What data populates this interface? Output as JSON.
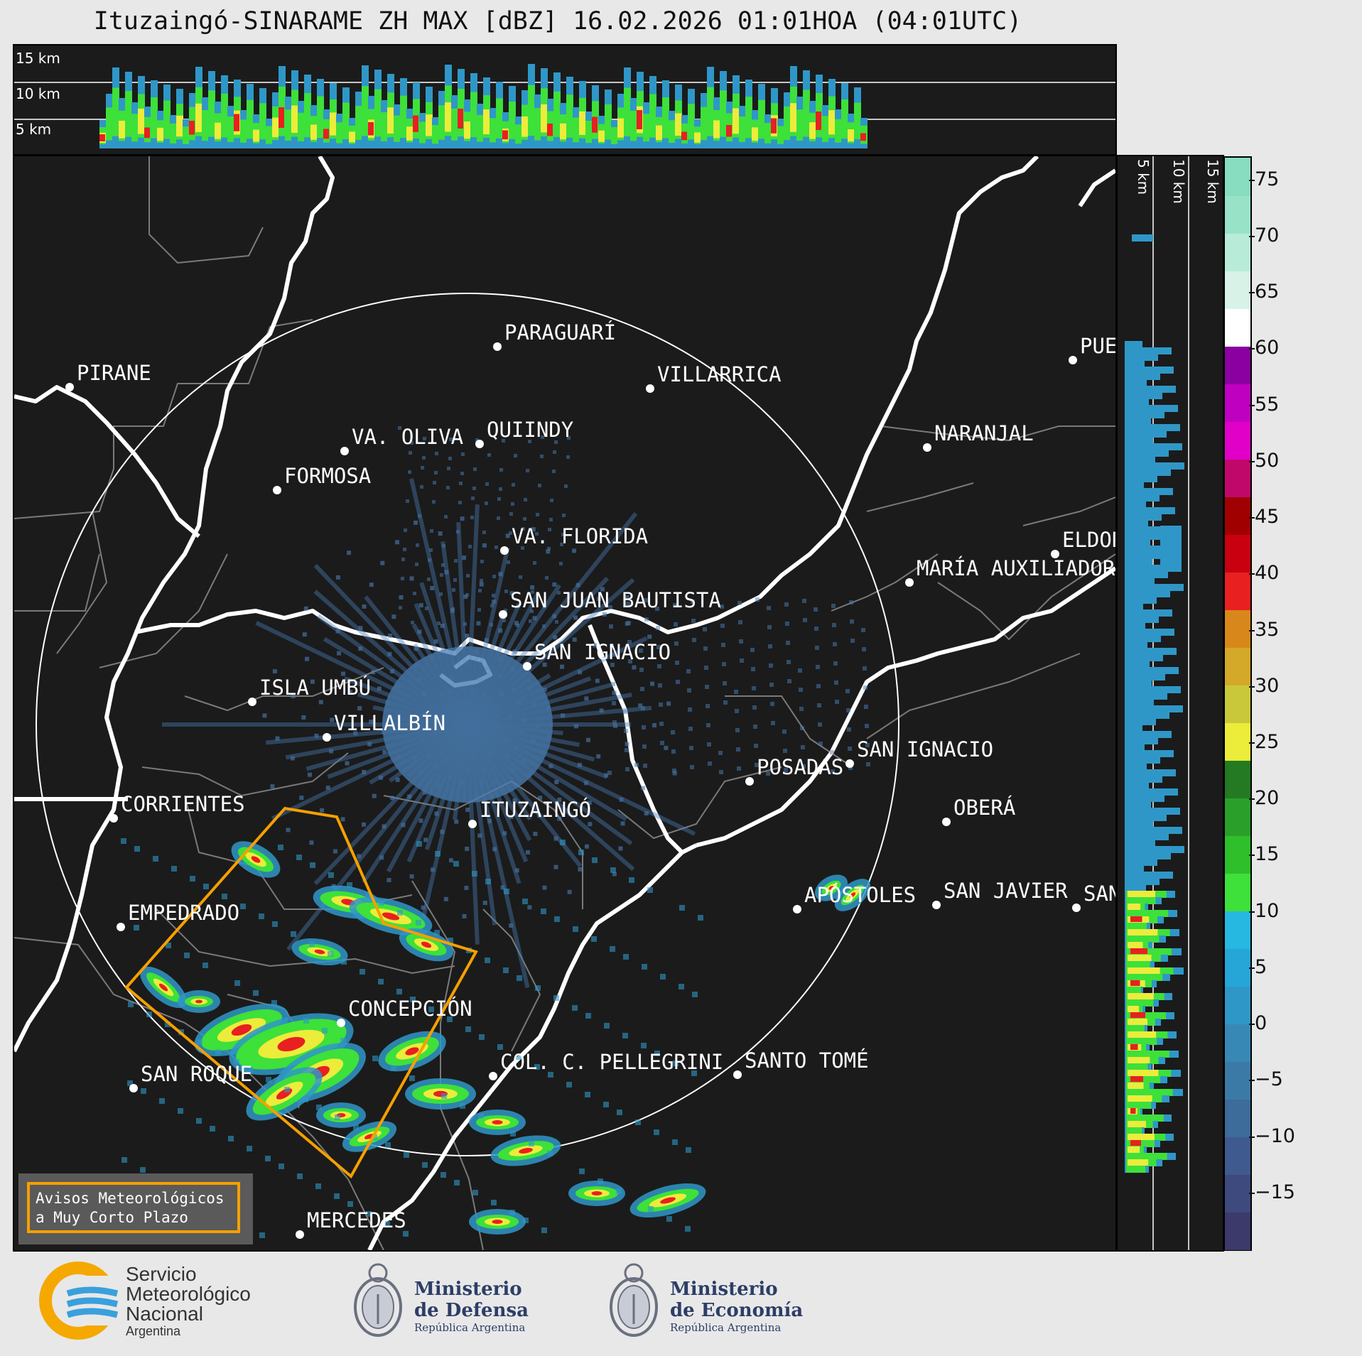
{
  "title": "Ituzaingó-SINARAME ZH MAX [dBZ] 16.02.2026 01:01HOA (04:01UTC)",
  "top_panel": {
    "height_labels": [
      "15 km",
      "10 km",
      "5 km"
    ]
  },
  "side_panel": {
    "height_labels": [
      "5 km",
      "10 km",
      "15 km"
    ]
  },
  "colorbar": {
    "unit": "dBZ",
    "ticks": [
      "75",
      "70",
      "65",
      "60",
      "55",
      "50",
      "45",
      "40",
      "35",
      "30",
      "25",
      "20",
      "15",
      "10",
      "5",
      "0",
      "−5",
      "−10",
      "−15"
    ],
    "range": [
      -20,
      77
    ],
    "colors": [
      "#3b3a6b",
      "#3e4a7e",
      "#3f5a8e",
      "#3d6b9a",
      "#3b7aa7",
      "#3888b6",
      "#2f97c7",
      "#26a6d6",
      "#26b8e0",
      "#3ee03a",
      "#2fbf2a",
      "#2aa02a",
      "#237a23",
      "#ecec3a",
      "#c8c83a",
      "#d4a828",
      "#d8881a",
      "#e82020",
      "#c80010",
      "#a00000",
      "#c0086a",
      "#e000c8",
      "#c000c0",
      "#8a00a0",
      "#ffffff",
      "#d8f2e8",
      "#b8ecd8",
      "#98e2c8",
      "#88dcc0"
    ]
  },
  "cities": [
    {
      "name": "PARAGUARÍ"
    },
    {
      "name": "VILLARRICA"
    },
    {
      "name": "PIRANE"
    },
    {
      "name": "QUIINDY"
    },
    {
      "name": "VA. OLIVA"
    },
    {
      "name": "NARANJAL"
    },
    {
      "name": "FORMOSA"
    },
    {
      "name": "VA. FLORIDA"
    },
    {
      "name": "ELDOR"
    },
    {
      "name": "MARÍA AUXILIADOR"
    },
    {
      "name": "SAN JUAN BAUTISTA"
    },
    {
      "name": "SAN IGNACIO"
    },
    {
      "name": "ISLA UMBÚ"
    },
    {
      "name": "VILLALBÍN"
    },
    {
      "name": "SAN IGNACIO"
    },
    {
      "name": "POSADAS"
    },
    {
      "name": "CORRIENTES"
    },
    {
      "name": "ITUZAINGÓ"
    },
    {
      "name": "OBERÁ"
    },
    {
      "name": "APÓSTOLES"
    },
    {
      "name": "SAN JAVIER"
    },
    {
      "name": "SAN"
    },
    {
      "name": "EMPEDRADO"
    },
    {
      "name": "CONCEPCIÓN"
    },
    {
      "name": "COL. C. PELLEGRINI"
    },
    {
      "name": "SANTO TOMÉ"
    },
    {
      "name": "SAN ROQUE"
    },
    {
      "name": "MERCEDES"
    },
    {
      "name": "PUER"
    }
  ],
  "warning_legend": {
    "line1": "Avisos Meteorológicos",
    "line2": "a Muy Corto Plazo"
  },
  "logos": {
    "smn": {
      "line1": "Servicio",
      "line2": "Meteorológico",
      "line3": "Nacional",
      "line4": "Argentina"
    },
    "defensa": {
      "line1": "Ministerio",
      "line2": "de Defensa",
      "line3": "República Argentina"
    },
    "economia": {
      "line1": "Ministerio",
      "line2": "de Economía",
      "line3": "República Argentina"
    }
  },
  "colors": {
    "warning": "#f5a000",
    "echo_low": "#4a7fb5",
    "range_ring": "#ffffff"
  }
}
